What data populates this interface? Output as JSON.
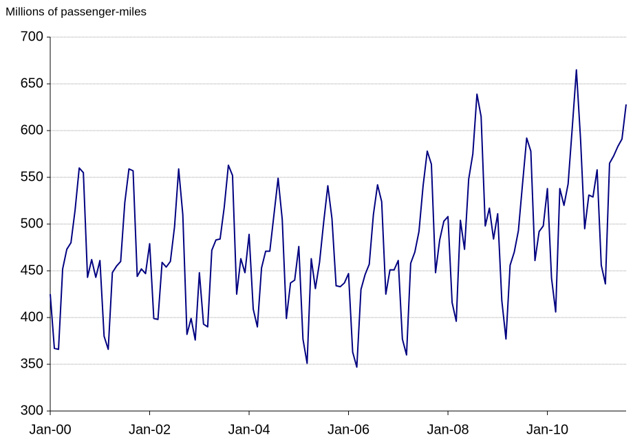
{
  "chart_data": {
    "type": "line",
    "y_label": "Millions of passenger-miles",
    "categories": [
      "Jan-00",
      null,
      null,
      null,
      null,
      null,
      null,
      null,
      null,
      null,
      null,
      null,
      null,
      null,
      null,
      null,
      null,
      null,
      null,
      null,
      null,
      null,
      null,
      null,
      "Jan-02",
      null,
      null,
      null,
      null,
      null,
      null,
      null,
      null,
      null,
      null,
      null,
      null,
      null,
      null,
      null,
      null,
      null,
      null,
      null,
      null,
      null,
      null,
      null,
      "Jan-04",
      null,
      null,
      null,
      null,
      null,
      null,
      null,
      null,
      null,
      null,
      null,
      null,
      null,
      null,
      null,
      null,
      null,
      null,
      null,
      null,
      null,
      null,
      null,
      "Jan-06",
      null,
      null,
      null,
      null,
      null,
      null,
      null,
      null,
      null,
      null,
      null,
      null,
      null,
      null,
      null,
      null,
      null,
      null,
      null,
      null,
      null,
      null,
      null,
      "Jan-08",
      null,
      null,
      null,
      null,
      null,
      null,
      null,
      null,
      null,
      null,
      null,
      null,
      null,
      null,
      null,
      null,
      null,
      null,
      null,
      null,
      null,
      null,
      null,
      "Jan-10",
      null,
      null,
      null,
      null,
      null,
      null,
      null,
      null,
      null,
      null,
      null,
      null,
      null,
      null,
      null,
      null,
      null,
      null,
      null
    ],
    "series": [
      {
        "color": "#000080",
        "values": [
          425,
          367,
          366,
          452,
          473,
          480,
          515,
          560,
          555,
          443,
          462,
          443,
          461,
          380,
          366,
          448,
          455,
          460,
          523,
          559,
          557,
          444,
          452,
          447,
          479,
          399,
          398,
          459,
          454,
          460,
          497,
          559,
          510,
          382,
          399,
          376,
          448,
          393,
          390,
          472,
          483,
          484,
          518,
          563,
          552,
          425,
          463,
          448,
          489,
          409,
          390,
          453,
          471,
          471,
          510,
          549,
          505,
          399,
          437,
          440,
          476,
          377,
          351,
          463,
          431,
          459,
          502,
          541,
          506,
          434,
          433,
          437,
          447,
          363,
          347,
          430,
          446,
          457,
          510,
          542,
          524,
          425,
          451,
          451,
          461,
          377,
          360,
          458,
          470,
          492,
          541,
          578,
          564,
          448,
          483,
          503,
          508,
          416,
          396,
          504,
          473,
          548,
          575,
          639,
          615,
          498,
          517,
          484,
          511,
          418,
          377,
          456,
          470,
          493,
          543,
          592,
          578,
          461,
          492,
          498,
          538,
          442,
          406,
          538,
          520,
          543,
          603,
          665,
          591,
          495,
          531,
          529,
          558,
          456,
          436,
          565,
          573,
          583,
          591,
          628
        ]
      }
    ],
    "ylim": [
      300,
      700
    ],
    "yticks": [
      300,
      350,
      400,
      450,
      500,
      550,
      600,
      650,
      700
    ],
    "grid": true
  }
}
